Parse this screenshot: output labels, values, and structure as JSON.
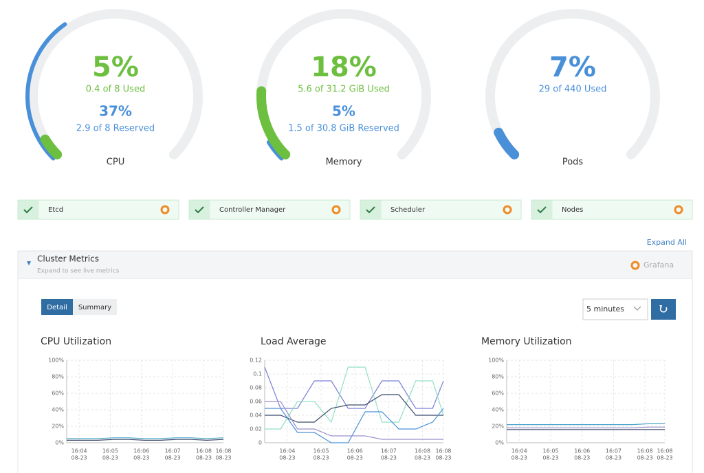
{
  "gauges": [
    {
      "name": "CPU",
      "color": "#6cbf3f",
      "used": {
        "value": 5,
        "label": "5%"
      },
      "used_detail": "0.4 of 8 Used",
      "reserved": {
        "value": 37,
        "label": "37%"
      },
      "reserved_detail": "2.9 of 8 Reserved",
      "reserved_color": "#4a90d9"
    },
    {
      "name": "Memory",
      "color": "#6cbf3f",
      "used": {
        "value": 18,
        "label": "18%"
      },
      "used_detail": "5.6 of 31.2 GiB Used",
      "reserved": {
        "value": 5,
        "label": "5%"
      },
      "reserved_detail": "1.5 of 30.8 GiB Reserved",
      "reserved_color": "#4a90d9"
    },
    {
      "name": "Pods",
      "color": "#4a90d9",
      "used": {
        "value": 7,
        "label": "7%"
      },
      "used_detail": "29 of 440 Used"
    }
  ],
  "status": [
    "Etcd",
    "Controller Manager",
    "Scheduler",
    "Nodes"
  ],
  "expand_all": "Expand All",
  "panel": {
    "title": "Cluster Metrics",
    "subtitle": "Expand to see live metrics",
    "grafana": "Grafana"
  },
  "tabs": [
    "Detail",
    "Summary"
  ],
  "range": "5 minutes",
  "charts": [
    {
      "type": "line",
      "title": "CPU Utilization",
      "x": [
        3.6,
        4.1,
        4.6,
        5.1,
        5.6,
        6.1,
        6.6,
        7.1,
        7.6,
        8.1,
        8.63
      ],
      "xlim": [
        3.6,
        8.63
      ],
      "xticks": [
        {
          "value": 4,
          "label": "16:04",
          "sublabel": "08-23"
        },
        {
          "value": 5,
          "label": "16:05",
          "sublabel": "08-23"
        },
        {
          "value": 6,
          "label": "16:06",
          "sublabel": "08-23"
        },
        {
          "value": 7,
          "label": "16:07",
          "sublabel": "08-23"
        },
        {
          "value": 8,
          "label": "16:08",
          "sublabel": "08-23"
        },
        {
          "value": 8.63,
          "label": "16:08",
          "sublabel": "08-23"
        }
      ],
      "ylim": [
        0,
        100
      ],
      "yticks": [
        {
          "value": 0,
          "label": "0%"
        },
        {
          "value": 20,
          "label": "20%"
        },
        {
          "value": 40,
          "label": "40%"
        },
        {
          "value": 60,
          "label": "60%"
        },
        {
          "value": 80,
          "label": "80%"
        },
        {
          "value": 100,
          "label": "100%"
        }
      ],
      "series": [
        {
          "color": "#4aa3c8",
          "values": [
            5,
            5,
            5,
            6,
            6,
            5,
            5,
            6,
            6,
            5,
            6
          ]
        },
        {
          "color": "#3b4a6b",
          "values": [
            3,
            3,
            3,
            4,
            4,
            3,
            3,
            4,
            4,
            3,
            4
          ]
        }
      ]
    },
    {
      "type": "line",
      "title": "Load Average",
      "x": [
        3.33,
        3.8,
        4.3,
        4.8,
        5.3,
        5.8,
        6.3,
        6.8,
        7.3,
        7.8,
        8.3,
        8.62
      ],
      "xlim": [
        3.33,
        8.62
      ],
      "xticks": [
        {
          "value": 4,
          "label": "16:04",
          "sublabel": "08-23"
        },
        {
          "value": 5,
          "label": "16:05",
          "sublabel": "08-23"
        },
        {
          "value": 6,
          "label": "16:06",
          "sublabel": "08-23"
        },
        {
          "value": 7,
          "label": "16:07",
          "sublabel": "08-23"
        },
        {
          "value": 8,
          "label": "16:08",
          "sublabel": "08-23"
        },
        {
          "value": 8.62,
          "label": "16:08",
          "sublabel": "08-23"
        }
      ],
      "ylim": [
        0,
        0.12
      ],
      "yticks": [
        0,
        0.02,
        0.04,
        0.06,
        0.08,
        0.1,
        0.12
      ],
      "series": [
        {
          "color": "#7a7fd6",
          "values": [
            0.11,
            0.05,
            0.05,
            0.09,
            0.09,
            0.05,
            0.05,
            0.09,
            0.09,
            0.05,
            0.05,
            0.09
          ]
        },
        {
          "color": "#8fe0c4",
          "values": [
            0.02,
            0.02,
            0.06,
            0.06,
            0.03,
            0.11,
            0.11,
            0.03,
            0.03,
            0.09,
            0.09,
            0.04
          ]
        },
        {
          "color": "#3b4a6b",
          "values": [
            0.04,
            0.04,
            0.03,
            0.03,
            0.05,
            0.055,
            0.055,
            0.07,
            0.07,
            0.04,
            0.04,
            0.04
          ]
        },
        {
          "color": "#4a90d9",
          "values": [
            0.05,
            0.05,
            0.015,
            0.015,
            0,
            0,
            0.045,
            0.045,
            0.02,
            0.02,
            0.03,
            0.05
          ]
        },
        {
          "color": "#9b8fc9",
          "values": [
            0.06,
            0.06,
            0.02,
            0.02,
            0.01,
            0.01,
            0.01,
            0.005,
            0.005,
            0.005,
            0.005,
            0.005
          ]
        }
      ]
    },
    {
      "type": "line",
      "title": "Memory Utilization",
      "x": [
        3.6,
        4.1,
        4.6,
        5.1,
        5.6,
        6.1,
        6.6,
        7.1,
        7.6,
        8.1,
        8.63
      ],
      "xlim": [
        3.6,
        8.63
      ],
      "xticks": [
        {
          "value": 4,
          "label": "16:04",
          "sublabel": "08-23"
        },
        {
          "value": 5,
          "label": "16:05",
          "sublabel": "08-23"
        },
        {
          "value": 6,
          "label": "16:06",
          "sublabel": "08-23"
        },
        {
          "value": 7,
          "label": "16:07",
          "sublabel": "08-23"
        },
        {
          "value": 8,
          "label": "16:08",
          "sublabel": "08-23"
        },
        {
          "value": 8.63,
          "label": "16:08",
          "sublabel": "08-23"
        }
      ],
      "ylim": [
        0,
        100
      ],
      "yticks": [
        {
          "value": 0,
          "label": "0%"
        },
        {
          "value": 20,
          "label": "20%"
        },
        {
          "value": 40,
          "label": "40%"
        },
        {
          "value": 60,
          "label": "60%"
        },
        {
          "value": 80,
          "label": "80%"
        },
        {
          "value": 100,
          "label": "100%"
        }
      ],
      "series": [
        {
          "color": "#4aa3c8",
          "values": [
            22,
            22,
            22,
            22,
            22,
            22,
            22,
            22,
            22,
            23,
            23
          ]
        },
        {
          "color": "#9b8fc9",
          "values": [
            18,
            18,
            18,
            18,
            18,
            18,
            18,
            18,
            18,
            19,
            19
          ]
        },
        {
          "color": "#3b4a6b",
          "values": [
            16,
            16,
            16,
            16,
            16,
            16,
            16,
            16,
            16,
            16,
            16
          ]
        }
      ]
    }
  ]
}
